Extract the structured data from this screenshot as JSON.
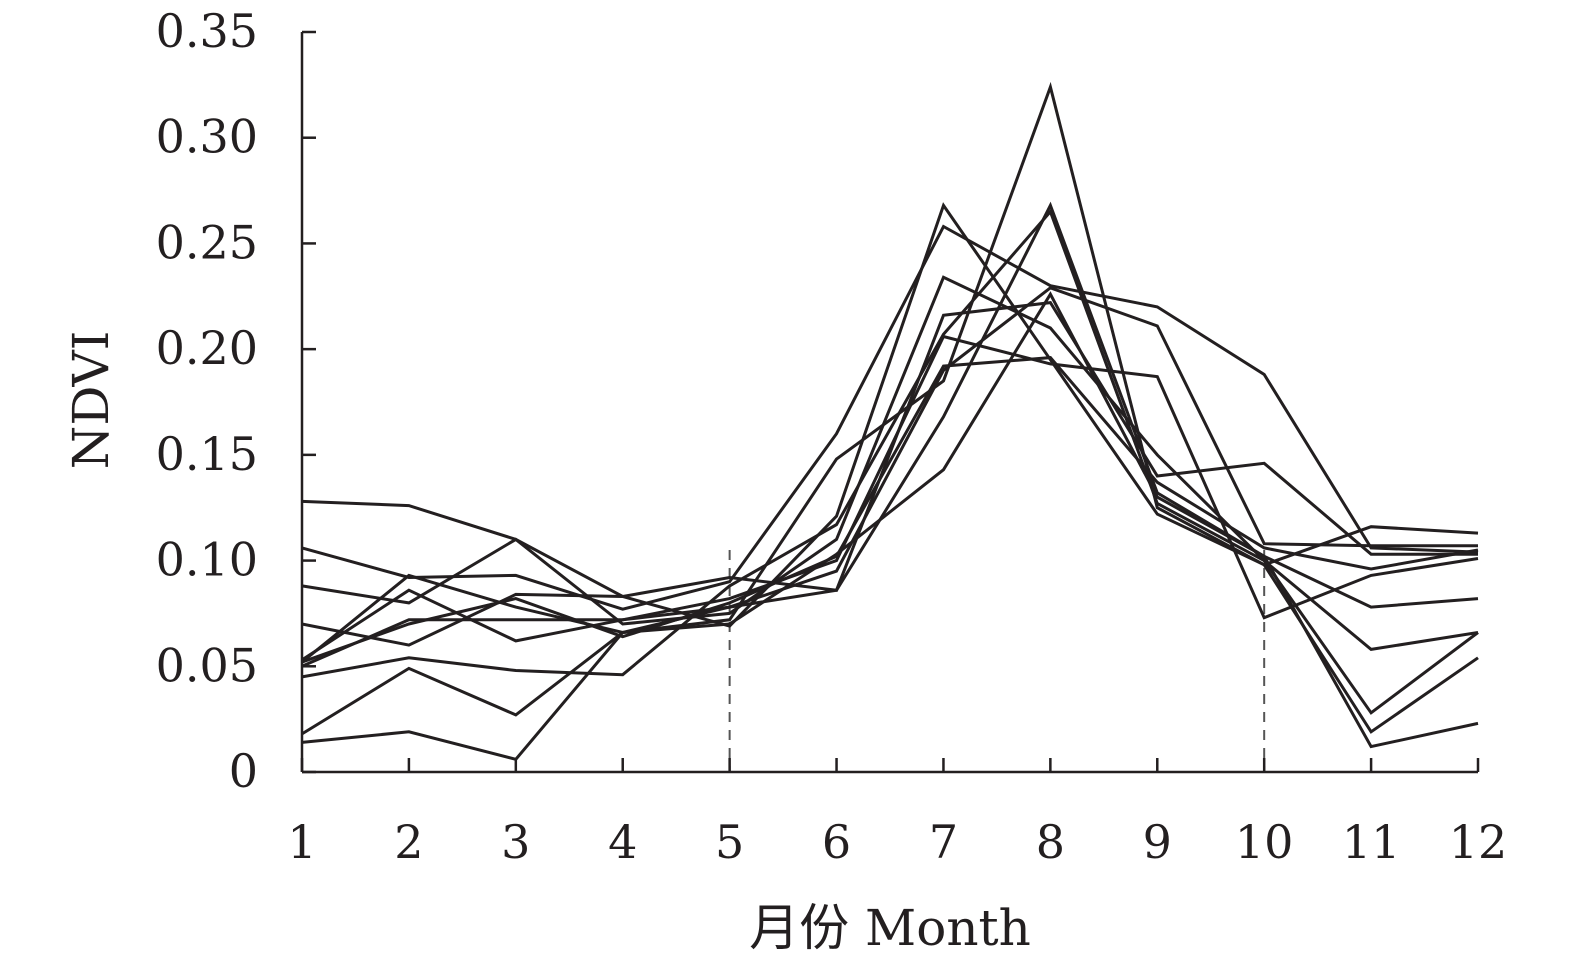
{
  "chart_data": {
    "type": "line",
    "xlabel": "月份 Month",
    "ylabel": "NDVI",
    "x": [
      1,
      2,
      3,
      4,
      5,
      6,
      7,
      8,
      9,
      10,
      11,
      12
    ],
    "x_tick_labels": [
      "1",
      "2",
      "3",
      "4",
      "5",
      "6",
      "7",
      "8",
      "9",
      "10",
      "11",
      "12"
    ],
    "y_tick_labels": [
      "0",
      "0.05",
      "0.10",
      "0.15",
      "0.20",
      "0.25",
      "0.30",
      "0.35"
    ],
    "y_ticks": [
      0,
      0.05,
      0.1,
      0.15,
      0.2,
      0.25,
      0.3,
      0.35
    ],
    "xlim": [
      1,
      12
    ],
    "ylim": [
      0,
      0.35
    ],
    "grid": false,
    "legend": "none",
    "line_color": "#231f20",
    "reference_lines_x": [
      5,
      10
    ],
    "series": [
      {
        "values": [
          0.128,
          0.126,
          0.11,
          0.083,
          0.069,
          0.121,
          0.268,
          0.195,
          0.122,
          0.098,
          0.116,
          0.113
        ]
      },
      {
        "values": [
          0.106,
          0.092,
          0.093,
          0.077,
          0.09,
          0.16,
          0.258,
          0.23,
          0.22,
          0.188,
          0.106,
          0.104
        ]
      },
      {
        "values": [
          0.088,
          0.08,
          0.11,
          0.07,
          0.075,
          0.11,
          0.234,
          0.21,
          0.15,
          0.1,
          0.028,
          0.066
        ]
      },
      {
        "values": [
          0.07,
          0.06,
          0.084,
          0.083,
          0.092,
          0.086,
          0.216,
          0.222,
          0.14,
          0.146,
          0.103,
          0.103
        ]
      },
      {
        "values": [
          0.053,
          0.086,
          0.062,
          0.072,
          0.082,
          0.1,
          0.206,
          0.193,
          0.187,
          0.073,
          0.093,
          0.101
        ]
      },
      {
        "values": [
          0.05,
          0.072,
          0.072,
          0.072,
          0.078,
          0.095,
          0.19,
          0.229,
          0.211,
          0.108,
          0.107,
          0.107
        ]
      },
      {
        "values": [
          0.052,
          0.093,
          0.078,
          0.066,
          0.078,
          0.086,
          0.168,
          0.268,
          0.132,
          0.102,
          0.078,
          0.082
        ]
      },
      {
        "values": [
          0.045,
          0.054,
          0.048,
          0.046,
          0.088,
          0.117,
          0.207,
          0.265,
          0.127,
          0.1,
          0.058,
          0.066
        ]
      },
      {
        "values": [
          0.018,
          0.049,
          0.027,
          0.066,
          0.07,
          0.103,
          0.143,
          0.226,
          0.13,
          0.102,
          0.012,
          0.023
        ]
      },
      {
        "values": [
          0.014,
          0.019,
          0.006,
          0.066,
          0.072,
          0.148,
          0.185,
          0.324,
          0.125,
          0.098,
          0.019,
          0.054
        ]
      },
      {
        "values": [
          0.052,
          0.07,
          0.082,
          0.064,
          0.08,
          0.102,
          0.192,
          0.196,
          0.137,
          0.106,
          0.096,
          0.105
        ]
      }
    ]
  }
}
